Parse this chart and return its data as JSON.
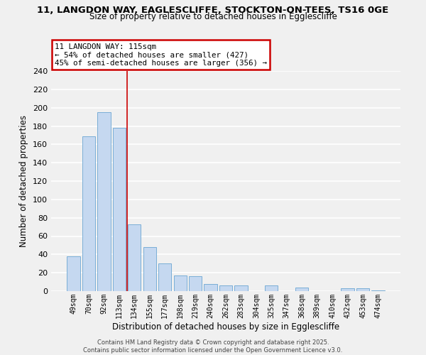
{
  "title1": "11, LANGDON WAY, EAGLESCLIFFE, STOCKTON-ON-TEES, TS16 0GE",
  "title2": "Size of property relative to detached houses in Egglescliffe",
  "bar_labels": [
    "49sqm",
    "70sqm",
    "92sqm",
    "113sqm",
    "134sqm",
    "155sqm",
    "177sqm",
    "198sqm",
    "219sqm",
    "240sqm",
    "262sqm",
    "283sqm",
    "304sqm",
    "325sqm",
    "347sqm",
    "368sqm",
    "389sqm",
    "410sqm",
    "432sqm",
    "453sqm",
    "474sqm"
  ],
  "bar_values": [
    38,
    169,
    195,
    178,
    73,
    48,
    30,
    17,
    16,
    8,
    6,
    6,
    0,
    6,
    0,
    4,
    0,
    0,
    3,
    3,
    1
  ],
  "bar_color": "#c5d8f0",
  "bar_edge_color": "#7aaed6",
  "xlabel": "Distribution of detached houses by size in Egglescliffe",
  "ylabel": "Number of detached properties",
  "ylim": [
    0,
    240
  ],
  "yticks": [
    0,
    20,
    40,
    60,
    80,
    100,
    120,
    140,
    160,
    180,
    200,
    220,
    240
  ],
  "annotation_title": "11 LANGDON WAY: 115sqm",
  "annotation_line1": "← 54% of detached houses are smaller (427)",
  "annotation_line2": "45% of semi-detached houses are larger (356) →",
  "annotation_box_color": "#ffffff",
  "annotation_box_edge": "#cc0000",
  "property_bar_index": 3,
  "property_line_color": "#cc0000",
  "background_color": "#f0f0f0",
  "grid_color": "#ffffff",
  "footer1": "Contains HM Land Registry data © Crown copyright and database right 2025.",
  "footer2": "Contains public sector information licensed under the Open Government Licence v3.0."
}
